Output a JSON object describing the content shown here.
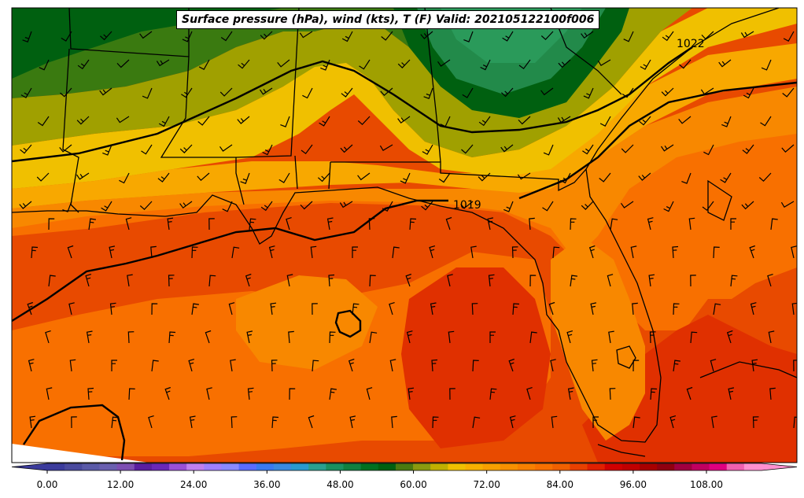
{
  "title": "Surface pressure (hPa), wind (kts), T (F) Valid: 202105122100f006",
  "contour_labels": [
    {
      "text": "1019"
    },
    {
      "text": "1022"
    }
  ],
  "colorbar": {
    "tick_labels": [
      "0.00",
      "12.00",
      "24.00",
      "36.00",
      "48.00",
      "60.00",
      "72.00",
      "84.00",
      "96.00",
      "108.00"
    ],
    "colors": [
      "#3b3b9c",
      "#4a4a9e",
      "#5a5aa8",
      "#6a60b0",
      "#7d4fb3",
      "#5a1fa0",
      "#6a28b8",
      "#9a50d8",
      "#c080f0",
      "#a080ff",
      "#8a8aff",
      "#5a6cff",
      "#3a7af0",
      "#3a8ae0",
      "#2a9ad0",
      "#2aa090",
      "#1a9060",
      "#108040",
      "#007020",
      "#006010",
      "#4a7a10",
      "#8a9a10",
      "#c0b000",
      "#f0c000",
      "#f8b000",
      "#f8a000",
      "#f89000",
      "#f88000",
      "#f87000",
      "#f06000",
      "#e84000",
      "#e02000",
      "#d00000",
      "#c00000",
      "#a80000",
      "#900010",
      "#a00040",
      "#c00060",
      "#e00080",
      "#f060b0",
      "#ff90d0"
    ]
  },
  "map_colors": {
    "t_50": "#006010",
    "t_55": "#228a4a",
    "t_58": "#2a9a5a",
    "t_60": "#3a7a10",
    "t_63": "#a0a000",
    "t_66": "#f0c000",
    "t_69": "#f8a800",
    "t_72": "#f88800",
    "t_75": "#f87000",
    "t_78": "#e84a00",
    "t_81": "#e03000"
  }
}
